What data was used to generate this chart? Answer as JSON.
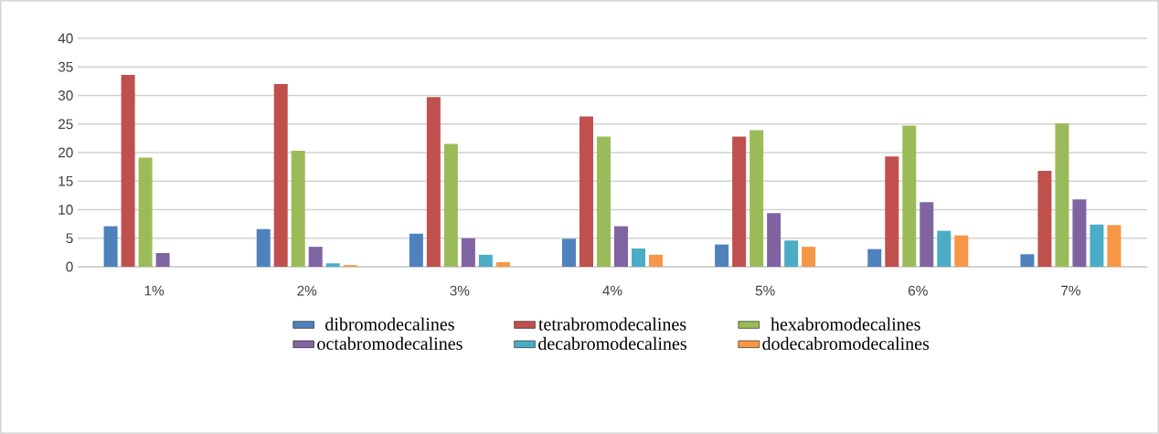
{
  "chart_data": {
    "type": "bar",
    "categories": [
      "1%",
      "2%",
      "3%",
      "4%",
      "5%",
      "6%",
      "7%"
    ],
    "series": [
      {
        "name": "dibromodecalines",
        "color": "#4f81bd",
        "values": [
          7.1,
          6.6,
          5.8,
          4.9,
          3.9,
          3.1,
          2.2
        ]
      },
      {
        "name": "tetrabromodecalines",
        "color": "#c0504d",
        "values": [
          33.6,
          32.0,
          29.7,
          26.3,
          22.8,
          19.3,
          16.8
        ]
      },
      {
        "name": "hexabromodecalines",
        "color": "#9bbb59",
        "values": [
          19.1,
          20.3,
          21.5,
          22.8,
          23.9,
          24.7,
          25.1
        ]
      },
      {
        "name": "octabromodecalines",
        "color": "#8064a2",
        "values": [
          2.4,
          3.5,
          5.0,
          7.1,
          9.4,
          11.3,
          11.8
        ]
      },
      {
        "name": "decabromodecalines",
        "color": "#4bacc6",
        "values": [
          0,
          0.6,
          2.1,
          3.2,
          4.6,
          6.3,
          7.4
        ]
      },
      {
        "name": "dodecabromodecalines",
        "color": "#f79646",
        "values": [
          0,
          0.3,
          0.8,
          2.1,
          3.5,
          5.5,
          7.3
        ]
      }
    ],
    "ylim": [
      0,
      40
    ],
    "yticks": [
      0,
      5,
      10,
      15,
      20,
      25,
      30,
      35,
      40
    ],
    "grid": "y",
    "legend": "bottom"
  }
}
